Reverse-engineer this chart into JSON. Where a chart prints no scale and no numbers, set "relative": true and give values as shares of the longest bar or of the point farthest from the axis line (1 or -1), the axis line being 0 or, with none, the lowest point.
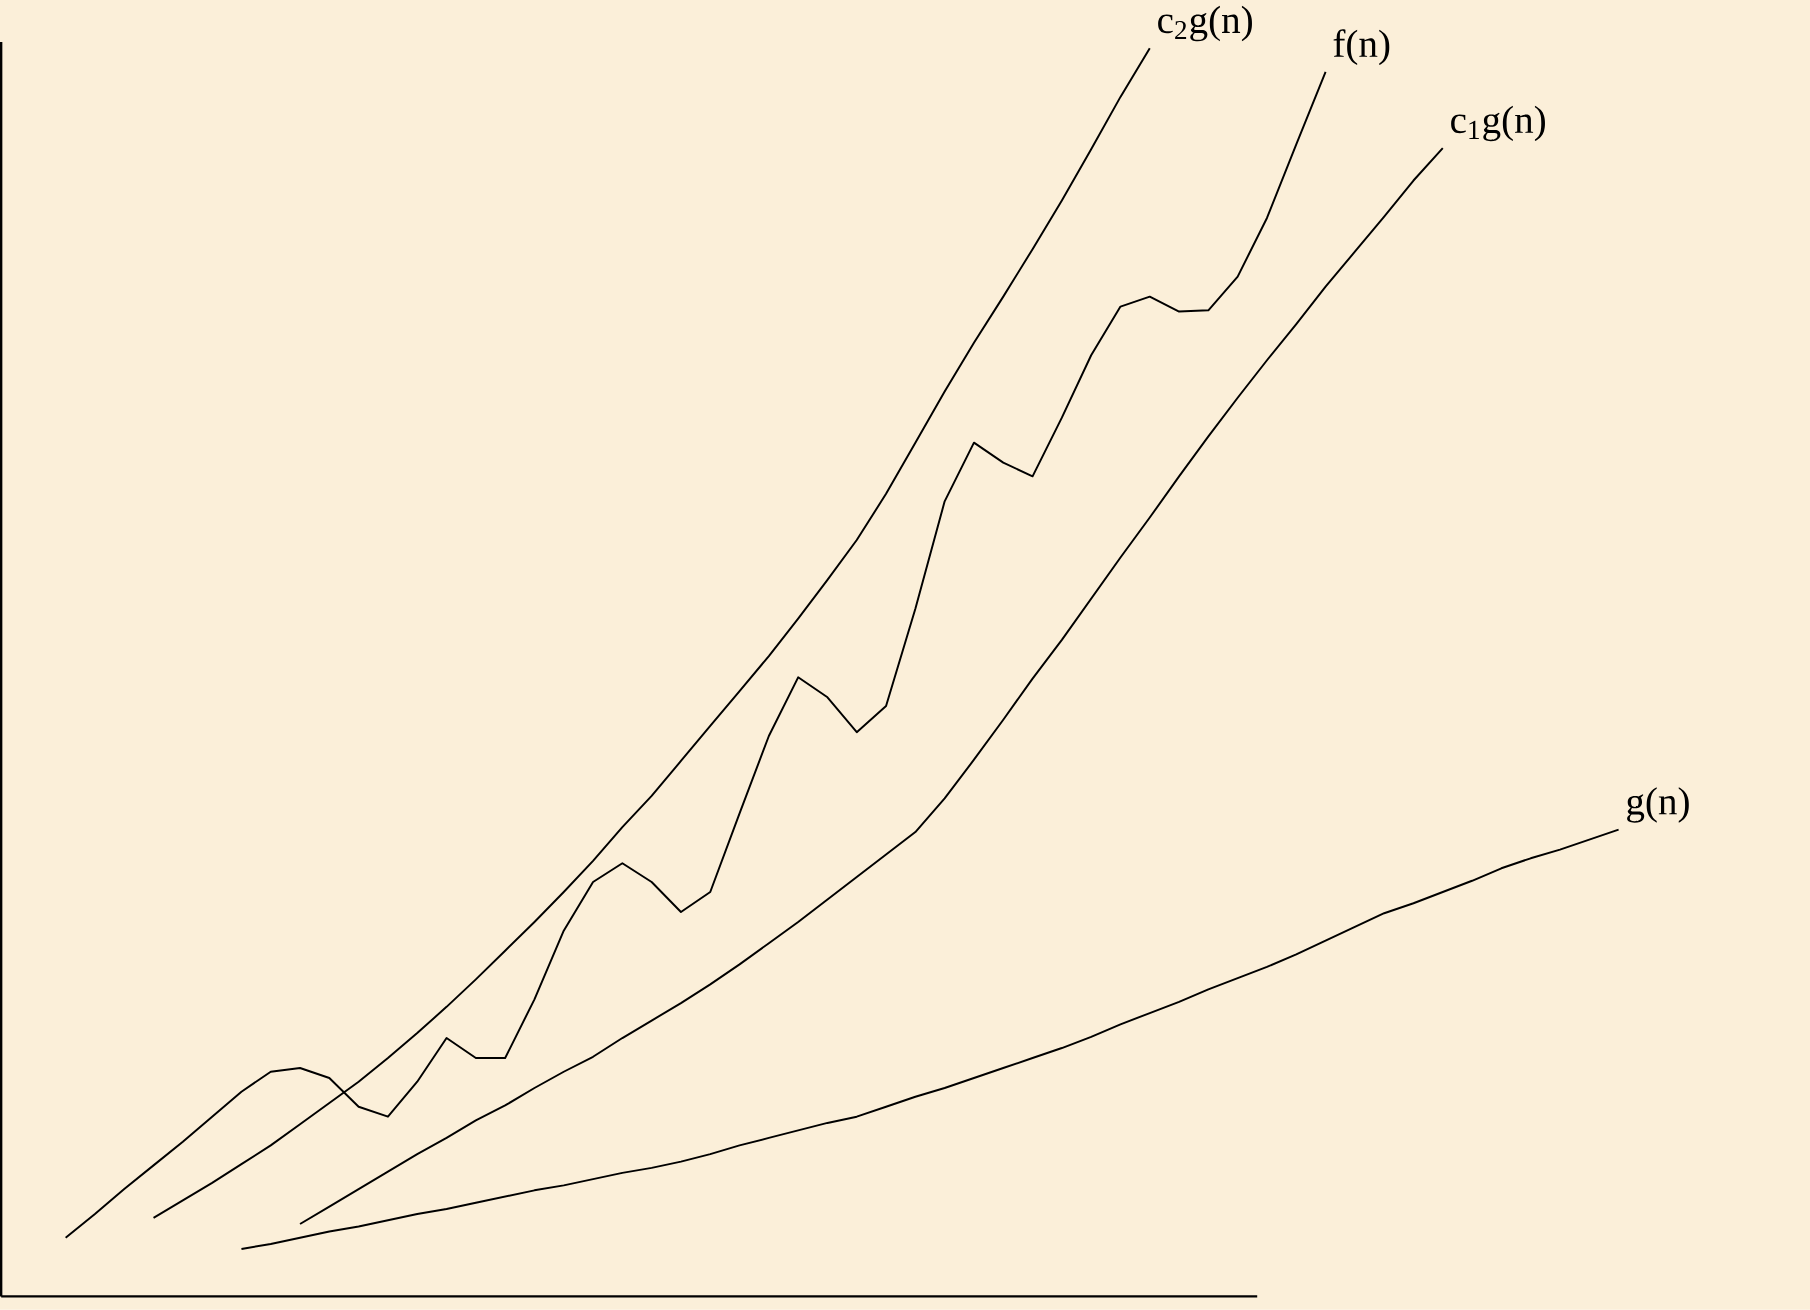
{
  "chart_data": {
    "type": "line",
    "relative": true,
    "marker": "none",
    "line_style": "solid",
    "categories": [
      null,
      null,
      null,
      null,
      null,
      null,
      null,
      null,
      null,
      null,
      null,
      null,
      null,
      null,
      null,
      null,
      null,
      null,
      null,
      null,
      null,
      null,
      null,
      null,
      null,
      null,
      null,
      null,
      null,
      null,
      null,
      null,
      null,
      null,
      null,
      null,
      null,
      null,
      null,
      null,
      null,
      null,
      null,
      null,
      null,
      null,
      null,
      null,
      null,
      null,
      null,
      null,
      null,
      null
    ],
    "series": [
      {
        "name": "c$_{2}$g(n)",
        "color": "#000000",
        "values": [
          null,
          null,
          null,
          0.063,
          0.077,
          0.091,
          0.106,
          0.121,
          0.138,
          0.155,
          0.172,
          0.191,
          0.211,
          0.232,
          0.254,
          0.277,
          0.3,
          0.324,
          0.349,
          0.376,
          0.401,
          0.429,
          0.457,
          0.485,
          0.513,
          0.543,
          0.574,
          0.606,
          0.643,
          0.684,
          0.725,
          0.764,
          0.801,
          0.839,
          0.878,
          0.919,
          0.961,
          1,
          null,
          null,
          null,
          null,
          null,
          null,
          null,
          null,
          null,
          null,
          null,
          null,
          null,
          null,
          null,
          null
        ]
      },
      {
        "name": "f(n)",
        "color": "#000000",
        "values": [
          0.047,
          0.066,
          0.086,
          0.105,
          0.124,
          0.144,
          0.164,
          0.18,
          0.183,
          0.175,
          0.152,
          0.144,
          0.172,
          0.207,
          0.191,
          0.191,
          0.238,
          0.293,
          0.332,
          0.347,
          0.332,
          0.308,
          0.324,
          0.387,
          0.449,
          0.496,
          0.48,
          0.452,
          0.473,
          0.551,
          0.637,
          0.684,
          0.668,
          0.657,
          0.704,
          0.754,
          0.793,
          0.801,
          0.789,
          0.79,
          0.817,
          0.864,
          0.923,
          0.981,
          null,
          null,
          null,
          null,
          null,
          null,
          null,
          null,
          null,
          null
        ]
      },
      {
        "name": "c$_{1}$g(n)",
        "color": "#000000",
        "values": [
          null,
          null,
          null,
          null,
          null,
          null,
          null,
          null,
          0.058,
          0.072,
          0.086,
          0.1,
          0.114,
          0.127,
          0.141,
          0.153,
          0.167,
          0.18,
          0.192,
          0.207,
          0.221,
          0.235,
          0.25,
          0.266,
          0.283,
          0.3,
          0.318,
          0.336,
          0.354,
          0.372,
          0.399,
          0.43,
          0.462,
          0.495,
          0.526,
          0.559,
          0.592,
          0.624,
          0.657,
          0.689,
          0.72,
          0.75,
          0.779,
          0.809,
          0.837,
          0.865,
          0.894,
          0.92,
          null,
          null,
          null,
          null,
          null,
          null
        ]
      },
      {
        "name": "g(n)",
        "color": "#000000",
        "values": [
          null,
          null,
          null,
          null,
          null,
          null,
          0.038,
          0.042,
          0.047,
          0.052,
          0.056,
          0.061,
          0.066,
          0.07,
          0.075,
          0.08,
          0.085,
          0.089,
          0.094,
          0.099,
          0.103,
          0.108,
          0.114,
          0.121,
          0.127,
          0.133,
          0.139,
          0.144,
          0.152,
          0.16,
          0.167,
          0.175,
          0.183,
          0.191,
          0.199,
          0.208,
          0.218,
          0.227,
          0.236,
          0.246,
          0.255,
          0.264,
          0.274,
          0.285,
          0.296,
          0.307,
          0.315,
          0.324,
          0.333,
          0.343,
          0.351,
          0.358,
          0.366,
          0.374
        ]
      }
    ]
  }
}
